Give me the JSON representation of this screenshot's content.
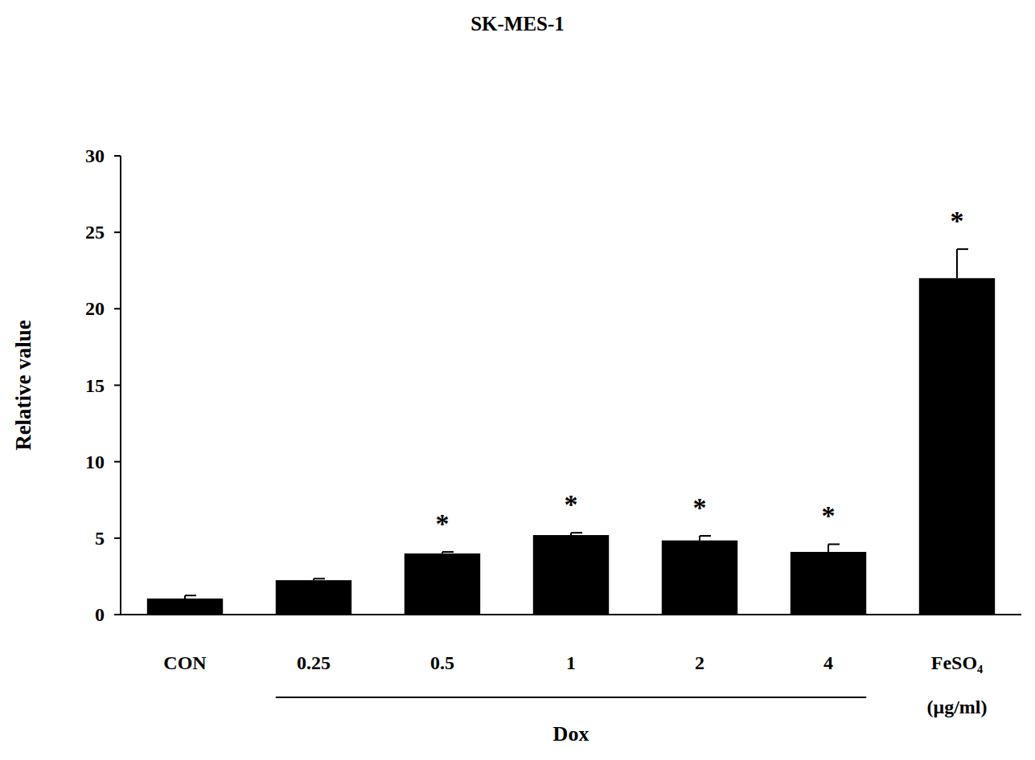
{
  "chart_data": {
    "type": "bar",
    "title": "SK-MES-1",
    "y_label": "Relative value",
    "x_label": "Dox",
    "x_unit": "(μg/ml)",
    "categories": [
      "CON",
      "0.25",
      "0.5",
      "1",
      "2",
      "4",
      "FeSO₄"
    ],
    "values": [
      1.05,
      2.25,
      4.0,
      5.2,
      4.85,
      4.1,
      22.0
    ],
    "errors": [
      0.2,
      0.1,
      0.1,
      0.15,
      0.3,
      0.5,
      1.9
    ],
    "significance": [
      null,
      null,
      "*",
      "*",
      "*",
      "*",
      "*"
    ],
    "color": "#000000",
    "ylim": [
      0,
      30
    ],
    "yticks": [
      0,
      5,
      10,
      15,
      20,
      25,
      30
    ],
    "grid": false
  }
}
